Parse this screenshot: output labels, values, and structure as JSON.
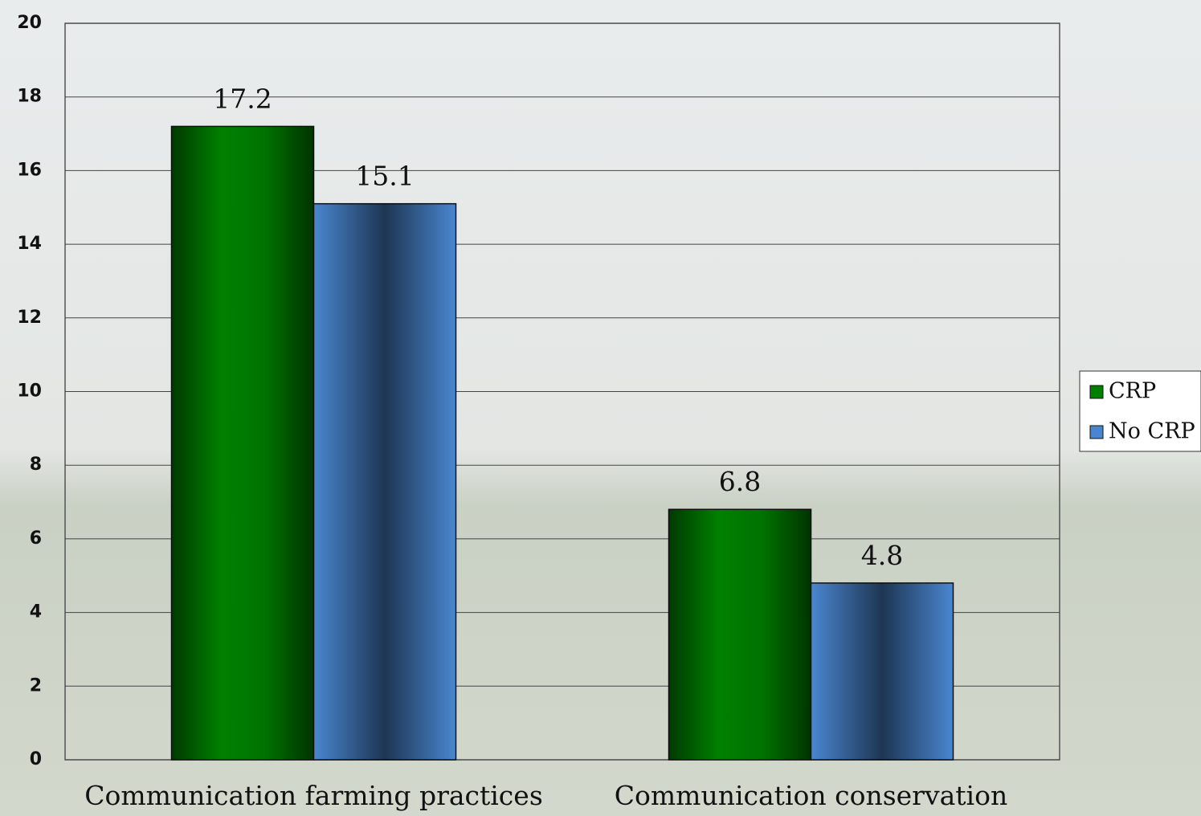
{
  "chart_data": {
    "type": "bar",
    "categories": [
      "Communication farming practices",
      "Communication conservation"
    ],
    "series": [
      {
        "name": "CRP",
        "color": "#008000",
        "values": [
          17.2,
          6.8
        ]
      },
      {
        "name": "No CRP",
        "color": "#4a86d0",
        "values": [
          15.1,
          4.8
        ]
      }
    ],
    "ylim": [
      0,
      20
    ],
    "yticks": [
      0,
      2,
      4,
      6,
      8,
      10,
      12,
      14,
      16,
      18,
      20
    ],
    "grid": true,
    "legend": "right"
  }
}
